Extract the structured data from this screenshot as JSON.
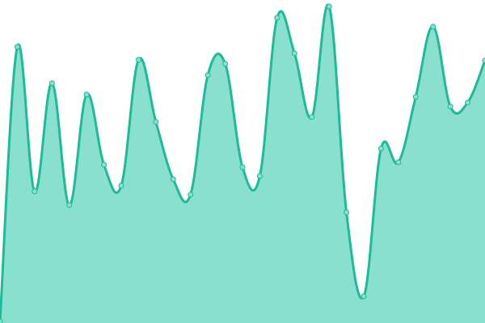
{
  "chart_data": {
    "type": "area",
    "title": "",
    "xlabel": "",
    "ylabel": "",
    "x": [
      0,
      1,
      2,
      3,
      4,
      5,
      6,
      7,
      8,
      9,
      10,
      11,
      12,
      13,
      14,
      15,
      16,
      17,
      18,
      19,
      20,
      21,
      22,
      23,
      24,
      25,
      26,
      27,
      28
    ],
    "series": [
      {
        "values": [
          2,
          342,
          163,
          297,
          146,
          283,
          196,
          170,
          326,
          249,
          178,
          159,
          307,
          321,
          193,
          182,
          378,
          334,
          255,
          392,
          137,
          33,
          216,
          199,
          280,
          367,
          268,
          273,
          325
        ]
      }
    ],
    "ylim": [
      0,
      400
    ],
    "grid": false,
    "axes_visible": false,
    "colors": {
      "line": "#1dbb98",
      "fill": "#8ae0cf",
      "point_fill": "#8ae0cf"
    }
  }
}
